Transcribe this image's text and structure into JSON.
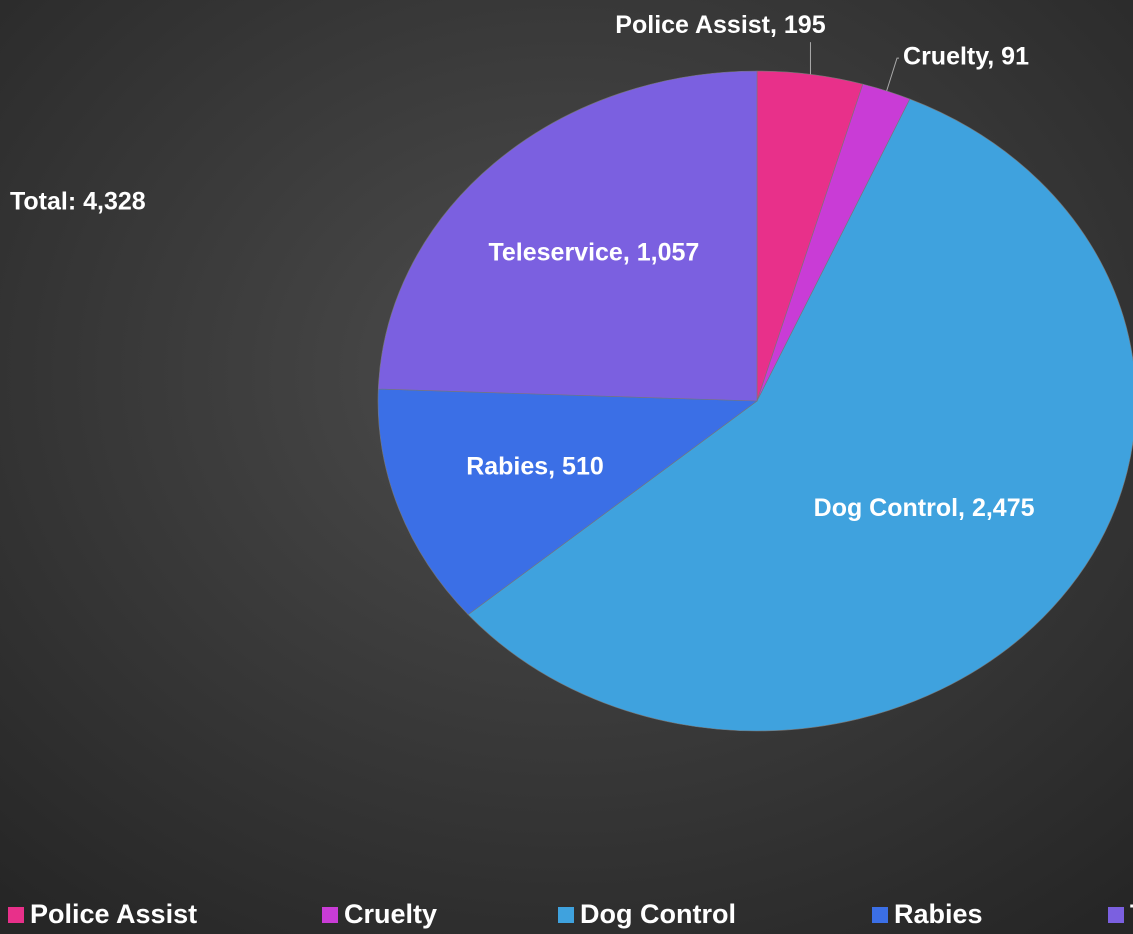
{
  "chart_data": {
    "type": "pie",
    "categories": [
      "Police Assist",
      "Cruelty",
      "Dog Control",
      "Rabies",
      "Teleservice"
    ],
    "values": [
      195,
      91,
      2475,
      510,
      1057
    ],
    "value_labels": [
      "Police Assist, 195",
      "Cruelty, 91",
      "Dog Control, 2,475",
      "Rabies, 510",
      "Teleservice, 1,057"
    ],
    "colors": [
      "#e8308a",
      "#c93cd6",
      "#3fa2de",
      "#3b6fe6",
      "#7b60e0"
    ],
    "annotation": "Total:  4,328",
    "legend": "bottom"
  }
}
